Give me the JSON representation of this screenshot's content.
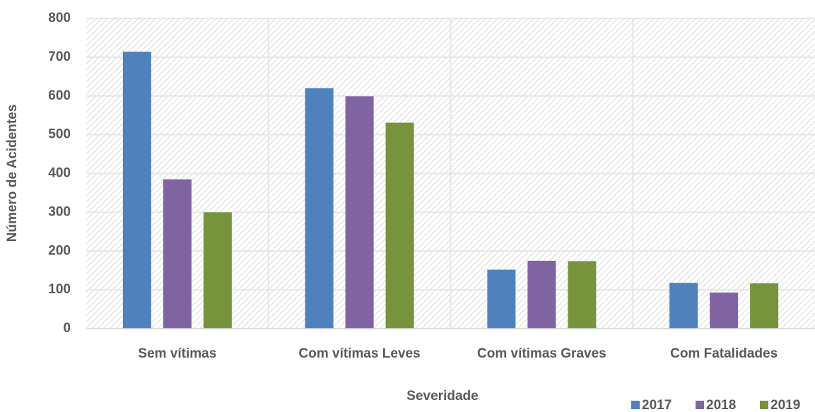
{
  "chart_data": {
    "type": "bar",
    "x_label": "Severidade",
    "y_label": "Número de Acidentes",
    "categories": [
      "Sem vítimas",
      "Com vítimas Leves",
      "Com vítimas Graves",
      "Com Fatalidades"
    ],
    "series": [
      {
        "name": "2017",
        "color": "#4f81bd",
        "values": [
          714,
          620,
          152,
          118
        ]
      },
      {
        "name": "2018",
        "color": "#8064a2",
        "values": [
          385,
          599,
          175,
          93
        ]
      },
      {
        "name": "2019",
        "color": "#77933c",
        "values": [
          300,
          531,
          174,
          117
        ]
      }
    ],
    "ylim": [
      0,
      800
    ],
    "yticks": [
      0,
      100,
      200,
      300,
      400,
      500,
      600,
      700,
      800
    ],
    "grid": true,
    "legend": "bottom-right"
  }
}
